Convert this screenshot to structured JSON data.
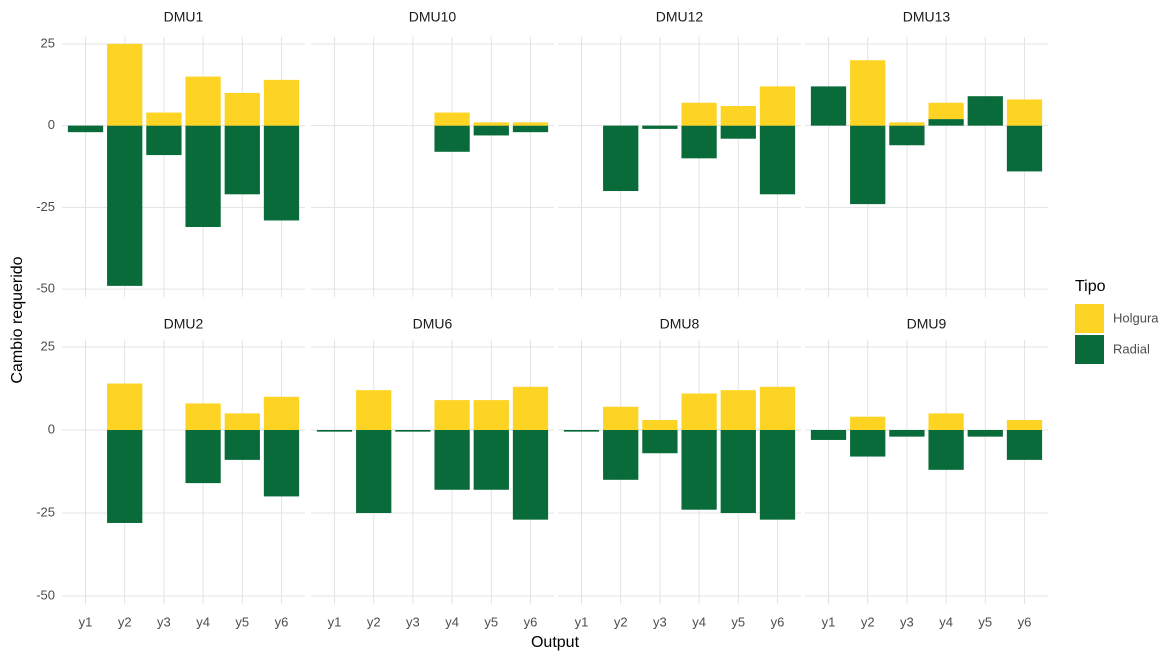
{
  "chart_data": {
    "type": "bar",
    "x_label": "Output",
    "y_label": "Cambio requerido",
    "legend_title": "Tipo",
    "categories": [
      "y1",
      "y2",
      "y3",
      "y4",
      "y5",
      "y6"
    ],
    "series": [
      {
        "name": "Holgura",
        "color": "#fdd424"
      },
      {
        "name": "Radial",
        "color": "#0a6b3a"
      }
    ],
    "ylim": [
      -52.4,
      27.1
    ],
    "yticks": [
      -50,
      -25,
      0,
      25
    ],
    "grid": true,
    "facets": [
      {
        "title": "DMU1",
        "series": [
          {
            "values": [
              0,
              25,
              4,
              15,
              10,
              14
            ]
          },
          {
            "values": [
              -2,
              -49,
              -9,
              -31,
              -21,
              -29
            ]
          }
        ]
      },
      {
        "title": "DMU10",
        "series": [
          {
            "values": [
              0,
              0,
              0,
              4,
              1,
              1
            ]
          },
          {
            "values": [
              0,
              0,
              0,
              -8,
              -3,
              -2
            ]
          }
        ]
      },
      {
        "title": "DMU12",
        "series": [
          {
            "values": [
              0,
              0,
              0,
              7,
              6,
              12
            ]
          },
          {
            "values": [
              0,
              -20,
              -1,
              -10,
              -4,
              -21
            ]
          }
        ]
      },
      {
        "title": "DMU13",
        "series": [
          {
            "values": [
              0,
              20,
              1,
              5,
              0,
              8
            ]
          },
          {
            "values": [
              12,
              -24,
              -6,
              2,
              9,
              -14
            ]
          }
        ]
      },
      {
        "title": "DMU2",
        "series": [
          {
            "values": [
              0,
              14,
              0,
              8,
              5,
              10
            ]
          },
          {
            "values": [
              0,
              -28,
              0,
              -16,
              -9,
              -20
            ]
          }
        ]
      },
      {
        "title": "DMU6",
        "series": [
          {
            "values": [
              0,
              12,
              0,
              9,
              9,
              13
            ]
          },
          {
            "values": [
              -0.5,
              -25,
              -0.5,
              -18,
              -18,
              -27
            ]
          }
        ]
      },
      {
        "title": "DMU8",
        "series": [
          {
            "values": [
              0,
              7,
              3,
              11,
              12,
              13
            ]
          },
          {
            "values": [
              -0.5,
              -15,
              -7,
              -24,
              -25,
              -27
            ]
          }
        ]
      },
      {
        "title": "DMU9",
        "series": [
          {
            "values": [
              0,
              4,
              0,
              5,
              0,
              3
            ]
          },
          {
            "values": [
              -3,
              -8,
              -2,
              -12,
              -2,
              -9
            ]
          }
        ]
      }
    ]
  }
}
